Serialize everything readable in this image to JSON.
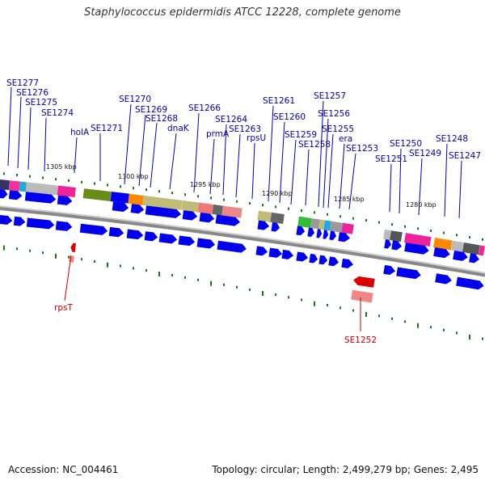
{
  "header": {
    "title": "Staphylococcus epidermidis ATCC 12228, complete genome"
  },
  "footer": {
    "accession": "Accession: NC_004461",
    "topology": "Topology: circular; Length: 2,499,279 bp; Genes: 2,495"
  },
  "colors": {
    "forward_arrow": "#0000ee",
    "reverse_arrow": "#dd0000",
    "forward_label": "#0000aa",
    "reverse_label": "#cc0000",
    "tick": "#117711",
    "backbone": "#888888"
  },
  "position_ticks": [
    "1305 kbp",
    "1300 kbp",
    "1295 kbp",
    "1290 kbp",
    "1285 kbp",
    "1280 kbp"
  ],
  "forward_gene_labels": [
    "SE1277",
    "SE1276",
    "SE1275",
    "SE1274",
    "holA",
    "SE1271",
    "SE1270",
    "SE1269",
    "SE1268",
    "dnaK",
    "SE1266",
    "prmA",
    "SE1264",
    "SE1263",
    "rpsU",
    "SE1261",
    "SE1260",
    "SE1259",
    "SE1258",
    "SE1257",
    "SE1256",
    "SE1255",
    "era",
    "SE1253",
    "SE1251",
    "SE1250",
    "SE1249",
    "SE1248",
    "SE1247"
  ],
  "reverse_gene_labels": [
    "rpsT",
    "SE1252"
  ]
}
